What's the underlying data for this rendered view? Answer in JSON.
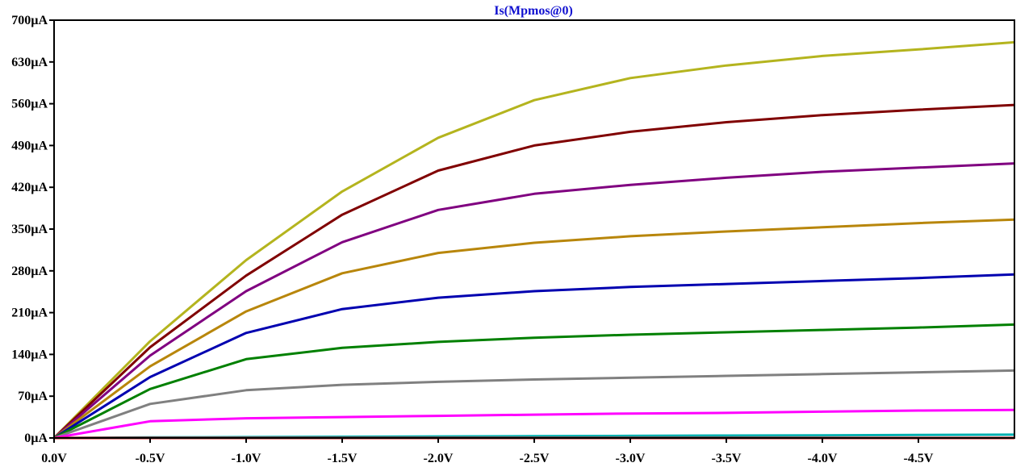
{
  "chart_data": {
    "type": "line",
    "title": "Is(Mpmos@0)",
    "title_color": "#1010d0",
    "xlabel": "",
    "ylabel": "",
    "xlim": [
      0.0,
      -5.0
    ],
    "ylim": [
      0,
      700
    ],
    "grid": false,
    "x_ticks": [
      0.0,
      -0.5,
      -1.0,
      -1.5,
      -2.0,
      -2.5,
      -3.0,
      -3.5,
      -4.0,
      -4.5
    ],
    "x_tick_labels": [
      "0.0V",
      "-0.5V",
      "-1.0V",
      "-1.5V",
      "-2.0V",
      "-2.5V",
      "-3.0V",
      "-3.5V",
      "-4.0V",
      "-4.5V"
    ],
    "y_ticks": [
      0,
      70,
      140,
      210,
      280,
      350,
      420,
      490,
      560,
      630,
      700
    ],
    "y_tick_labels": [
      "0µA",
      "70µA",
      "140µA",
      "210µA",
      "280µA",
      "350µA",
      "420µA",
      "490µA",
      "560µA",
      "630µA",
      "700µA"
    ],
    "x": [
      0.0,
      -0.5,
      -1.0,
      -1.5,
      -2.0,
      -2.5,
      -3.0,
      -3.5,
      -4.0,
      -4.5,
      -5.0
    ],
    "series": [
      {
        "color": "#b4b41e",
        "values": [
          0,
          162,
          298,
          413,
          503,
          566,
          603,
          624,
          640,
          651,
          663
        ]
      },
      {
        "color": "#800000",
        "values": [
          0,
          152,
          272,
          374,
          448,
          490,
          513,
          529,
          541,
          550,
          558
        ]
      },
      {
        "color": "#800080",
        "values": [
          0,
          138,
          246,
          328,
          382,
          409,
          424,
          436,
          446,
          453,
          460
        ]
      },
      {
        "color": "#b8860b",
        "values": [
          0,
          120,
          212,
          276,
          310,
          327,
          338,
          346,
          353,
          360,
          366
        ]
      },
      {
        "color": "#0000b0",
        "values": [
          0,
          102,
          176,
          216,
          235,
          246,
          253,
          258,
          263,
          268,
          274
        ]
      },
      {
        "color": "#008000",
        "values": [
          0,
          82,
          132,
          151,
          161,
          168,
          173,
          177,
          181,
          185,
          190
        ]
      },
      {
        "color": "#808080",
        "values": [
          0,
          57,
          80,
          89,
          94,
          98,
          101,
          104,
          107,
          110,
          113
        ]
      },
      {
        "color": "#ff00ff",
        "values": [
          0,
          28,
          33,
          35,
          37,
          39,
          41,
          42,
          44,
          46,
          47
        ]
      },
      {
        "color": "#00b0b0",
        "values": [
          0,
          1,
          1.5,
          2,
          2.5,
          3,
          3.5,
          4,
          4.5,
          5,
          5.5
        ]
      },
      {
        "color": "#d00000",
        "values": [
          0,
          0,
          0,
          0,
          0,
          0,
          0,
          0,
          0,
          0,
          0
        ]
      }
    ]
  }
}
